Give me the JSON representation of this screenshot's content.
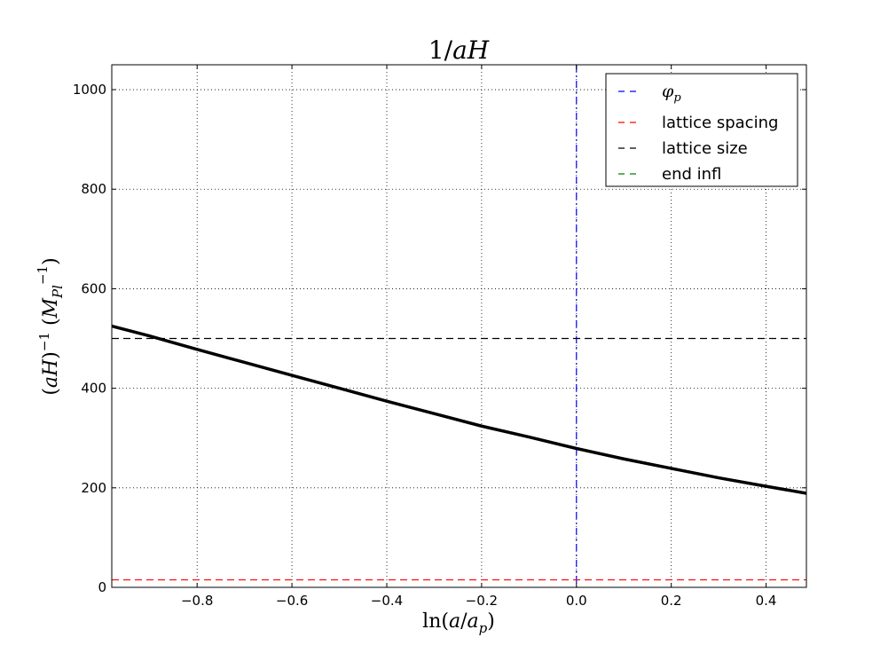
{
  "chart_data": {
    "type": "line",
    "title": "1/aH",
    "xlabel": "ln(a/a_p)",
    "ylabel": "(aH)^{-1} (M_Pl^{-1})",
    "xlim": [
      -0.98,
      0.485
    ],
    "ylim": [
      0,
      1050
    ],
    "grid": true,
    "legend_position": "top-right",
    "x_ticks": [
      -0.8,
      -0.6,
      -0.4,
      -0.2,
      0.0,
      0.2,
      0.4
    ],
    "x_tick_labels": [
      "−0.8",
      "−0.6",
      "−0.4",
      "−0.2",
      "0.0",
      "0.2",
      "0.4"
    ],
    "y_ticks": [
      0,
      200,
      400,
      600,
      800,
      1000
    ],
    "y_tick_labels": [
      "0",
      "200",
      "400",
      "600",
      "800",
      "1000"
    ],
    "series": [
      {
        "color": "#000000",
        "style": "solid",
        "x": [
          -0.98,
          -0.9,
          -0.8,
          -0.7,
          -0.6,
          -0.5,
          -0.4,
          -0.3,
          -0.2,
          -0.1,
          0.0,
          0.1,
          0.2,
          0.3,
          0.4,
          0.485
        ],
        "y": [
          525,
          505,
          478,
          452,
          426,
          400,
          374,
          349,
          324,
          302,
          279,
          258,
          239,
          220,
          203,
          189
        ]
      }
    ],
    "reference_lines": [
      {
        "name": "phi_p",
        "legend_label": "φ",
        "legend_sub": "p",
        "orientation": "vertical",
        "value": 0.0,
        "color": "#0000ff",
        "style": "dashdot"
      },
      {
        "name": "lattice spacing",
        "legend_label": "lattice spacing",
        "orientation": "horizontal",
        "value": 15,
        "color": "#ff0000",
        "style": "dashed"
      },
      {
        "name": "lattice size",
        "legend_label": "lattice size",
        "orientation": "horizontal",
        "value": 500,
        "color": "#000000",
        "style": "dashed"
      },
      {
        "name": "end infl",
        "legend_label": "end infl",
        "orientation": "none",
        "value": null,
        "color": "#008000",
        "style": "dashed"
      }
    ]
  }
}
